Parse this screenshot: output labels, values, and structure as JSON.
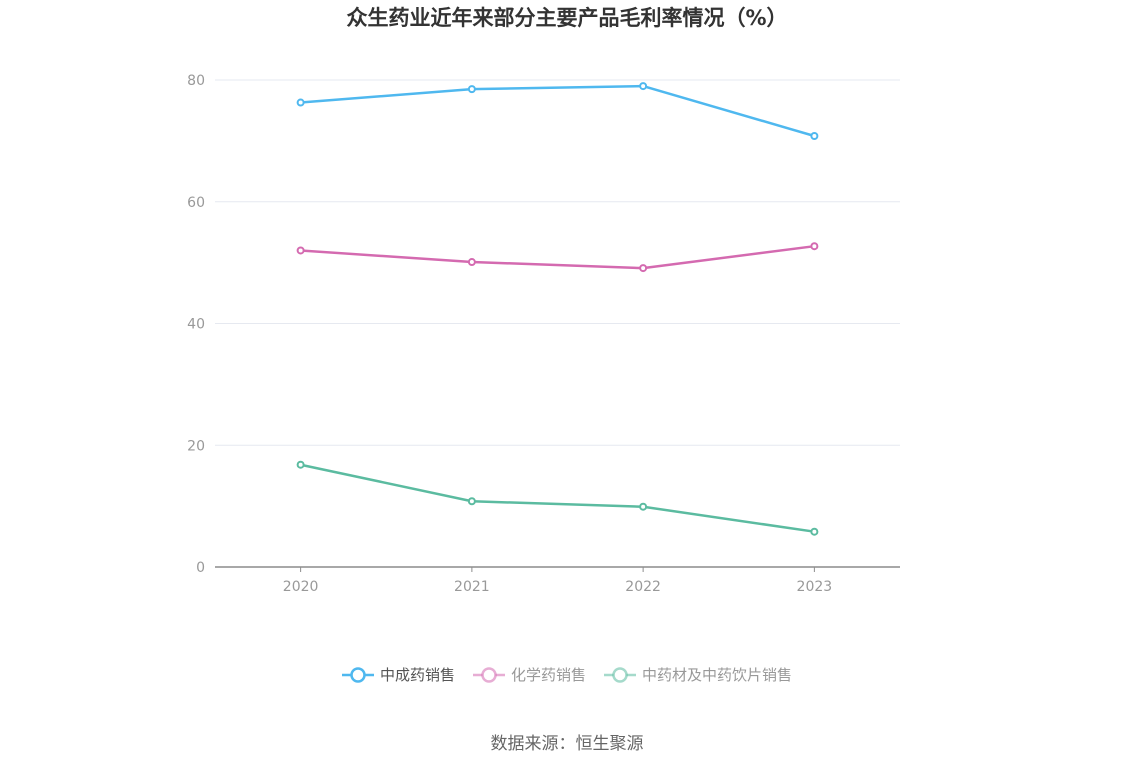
{
  "chart_data": {
    "type": "line",
    "title": "众生药业近年来部分主要产品毛利率情况（%）",
    "categories": [
      "2020",
      "2021",
      "2022",
      "2023"
    ],
    "ylim": [
      0,
      80
    ],
    "yticks": [
      0,
      20,
      40,
      60,
      80
    ],
    "grid": true,
    "legend_position": "bottom",
    "series": [
      {
        "name": "中成药销售",
        "color": "#4fb8ef",
        "values": [
          76.3,
          78.5,
          79.0,
          70.8
        ]
      },
      {
        "name": "化学药销售",
        "color": "#d46ab0",
        "values": [
          52.0,
          50.1,
          49.1,
          52.7
        ]
      },
      {
        "name": "中药材及中药饮片销售",
        "color": "#5bbba0",
        "values": [
          16.8,
          10.8,
          9.9,
          5.8
        ]
      }
    ]
  },
  "source_text": "数据来源：恒生聚源"
}
